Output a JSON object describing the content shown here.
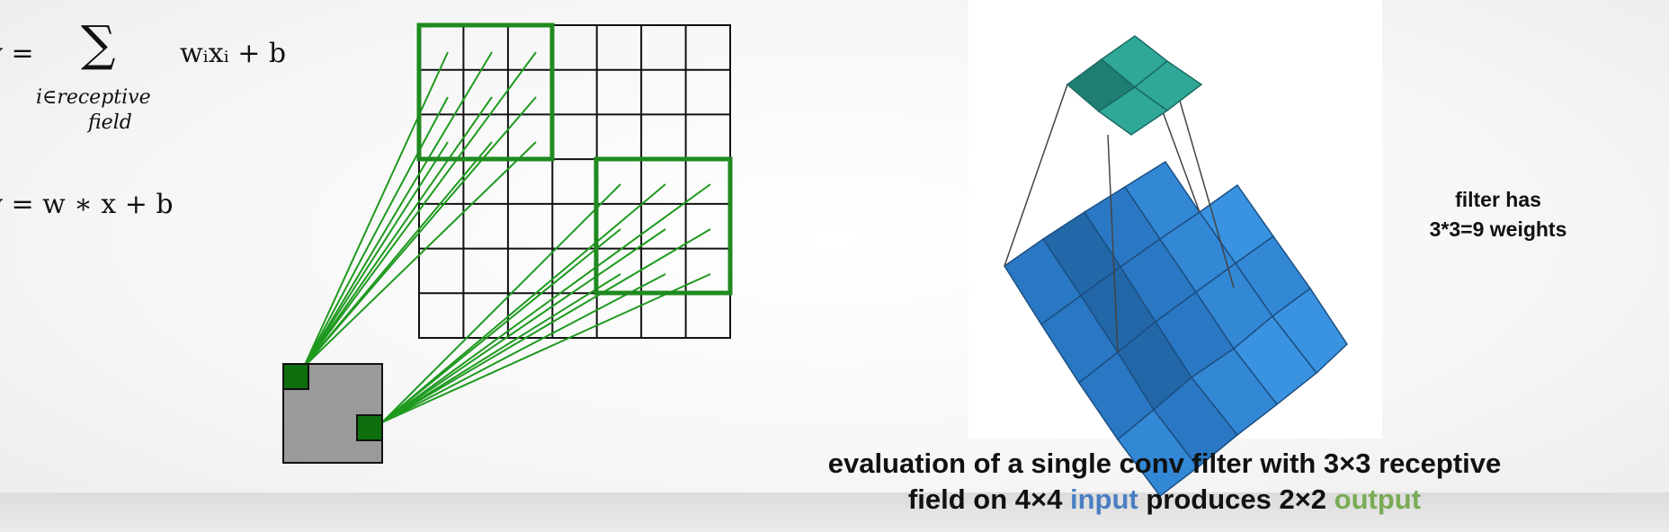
{
  "equations": {
    "sum": {
      "lhs": "y =",
      "sigma": "∑",
      "subscript_line1": "i∈receptive",
      "subscript_line2": "field",
      "rhs": "wᵢxᵢ + b"
    },
    "conv": "y = w ∗ x + b"
  },
  "filter_note": {
    "line1": "filter has",
    "line2": "3*3=9 weights"
  },
  "caption": {
    "line1": "evaluation of a single conv filter with 3×3 receptive",
    "line2_part1": "field on 4×4 ",
    "input_word": "input",
    "line2_part2": " produces 2×2 ",
    "output_word": "output"
  },
  "colors": {
    "line_green": "#1f9a1f",
    "box_green": "#137a13",
    "output_gray": "#9a9a9a",
    "input_highlight": "#4a7ec2",
    "output_highlight": "#7aab55",
    "filter_teal": "#2fa898",
    "input_blue": "#2a78c4"
  }
}
